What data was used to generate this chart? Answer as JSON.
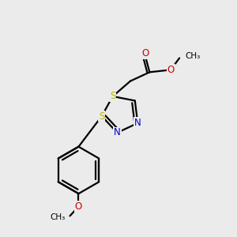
{
  "bg_color": "#ebebeb",
  "bond_color": "#000000",
  "S_color": "#b8b800",
  "N_color": "#0000cc",
  "O_color": "#cc0000",
  "bond_width": 1.6,
  "figsize": [
    3.0,
    3.0
  ],
  "dpi": 100,
  "xlim": [
    0,
    10
  ],
  "ylim": [
    0,
    10
  ]
}
